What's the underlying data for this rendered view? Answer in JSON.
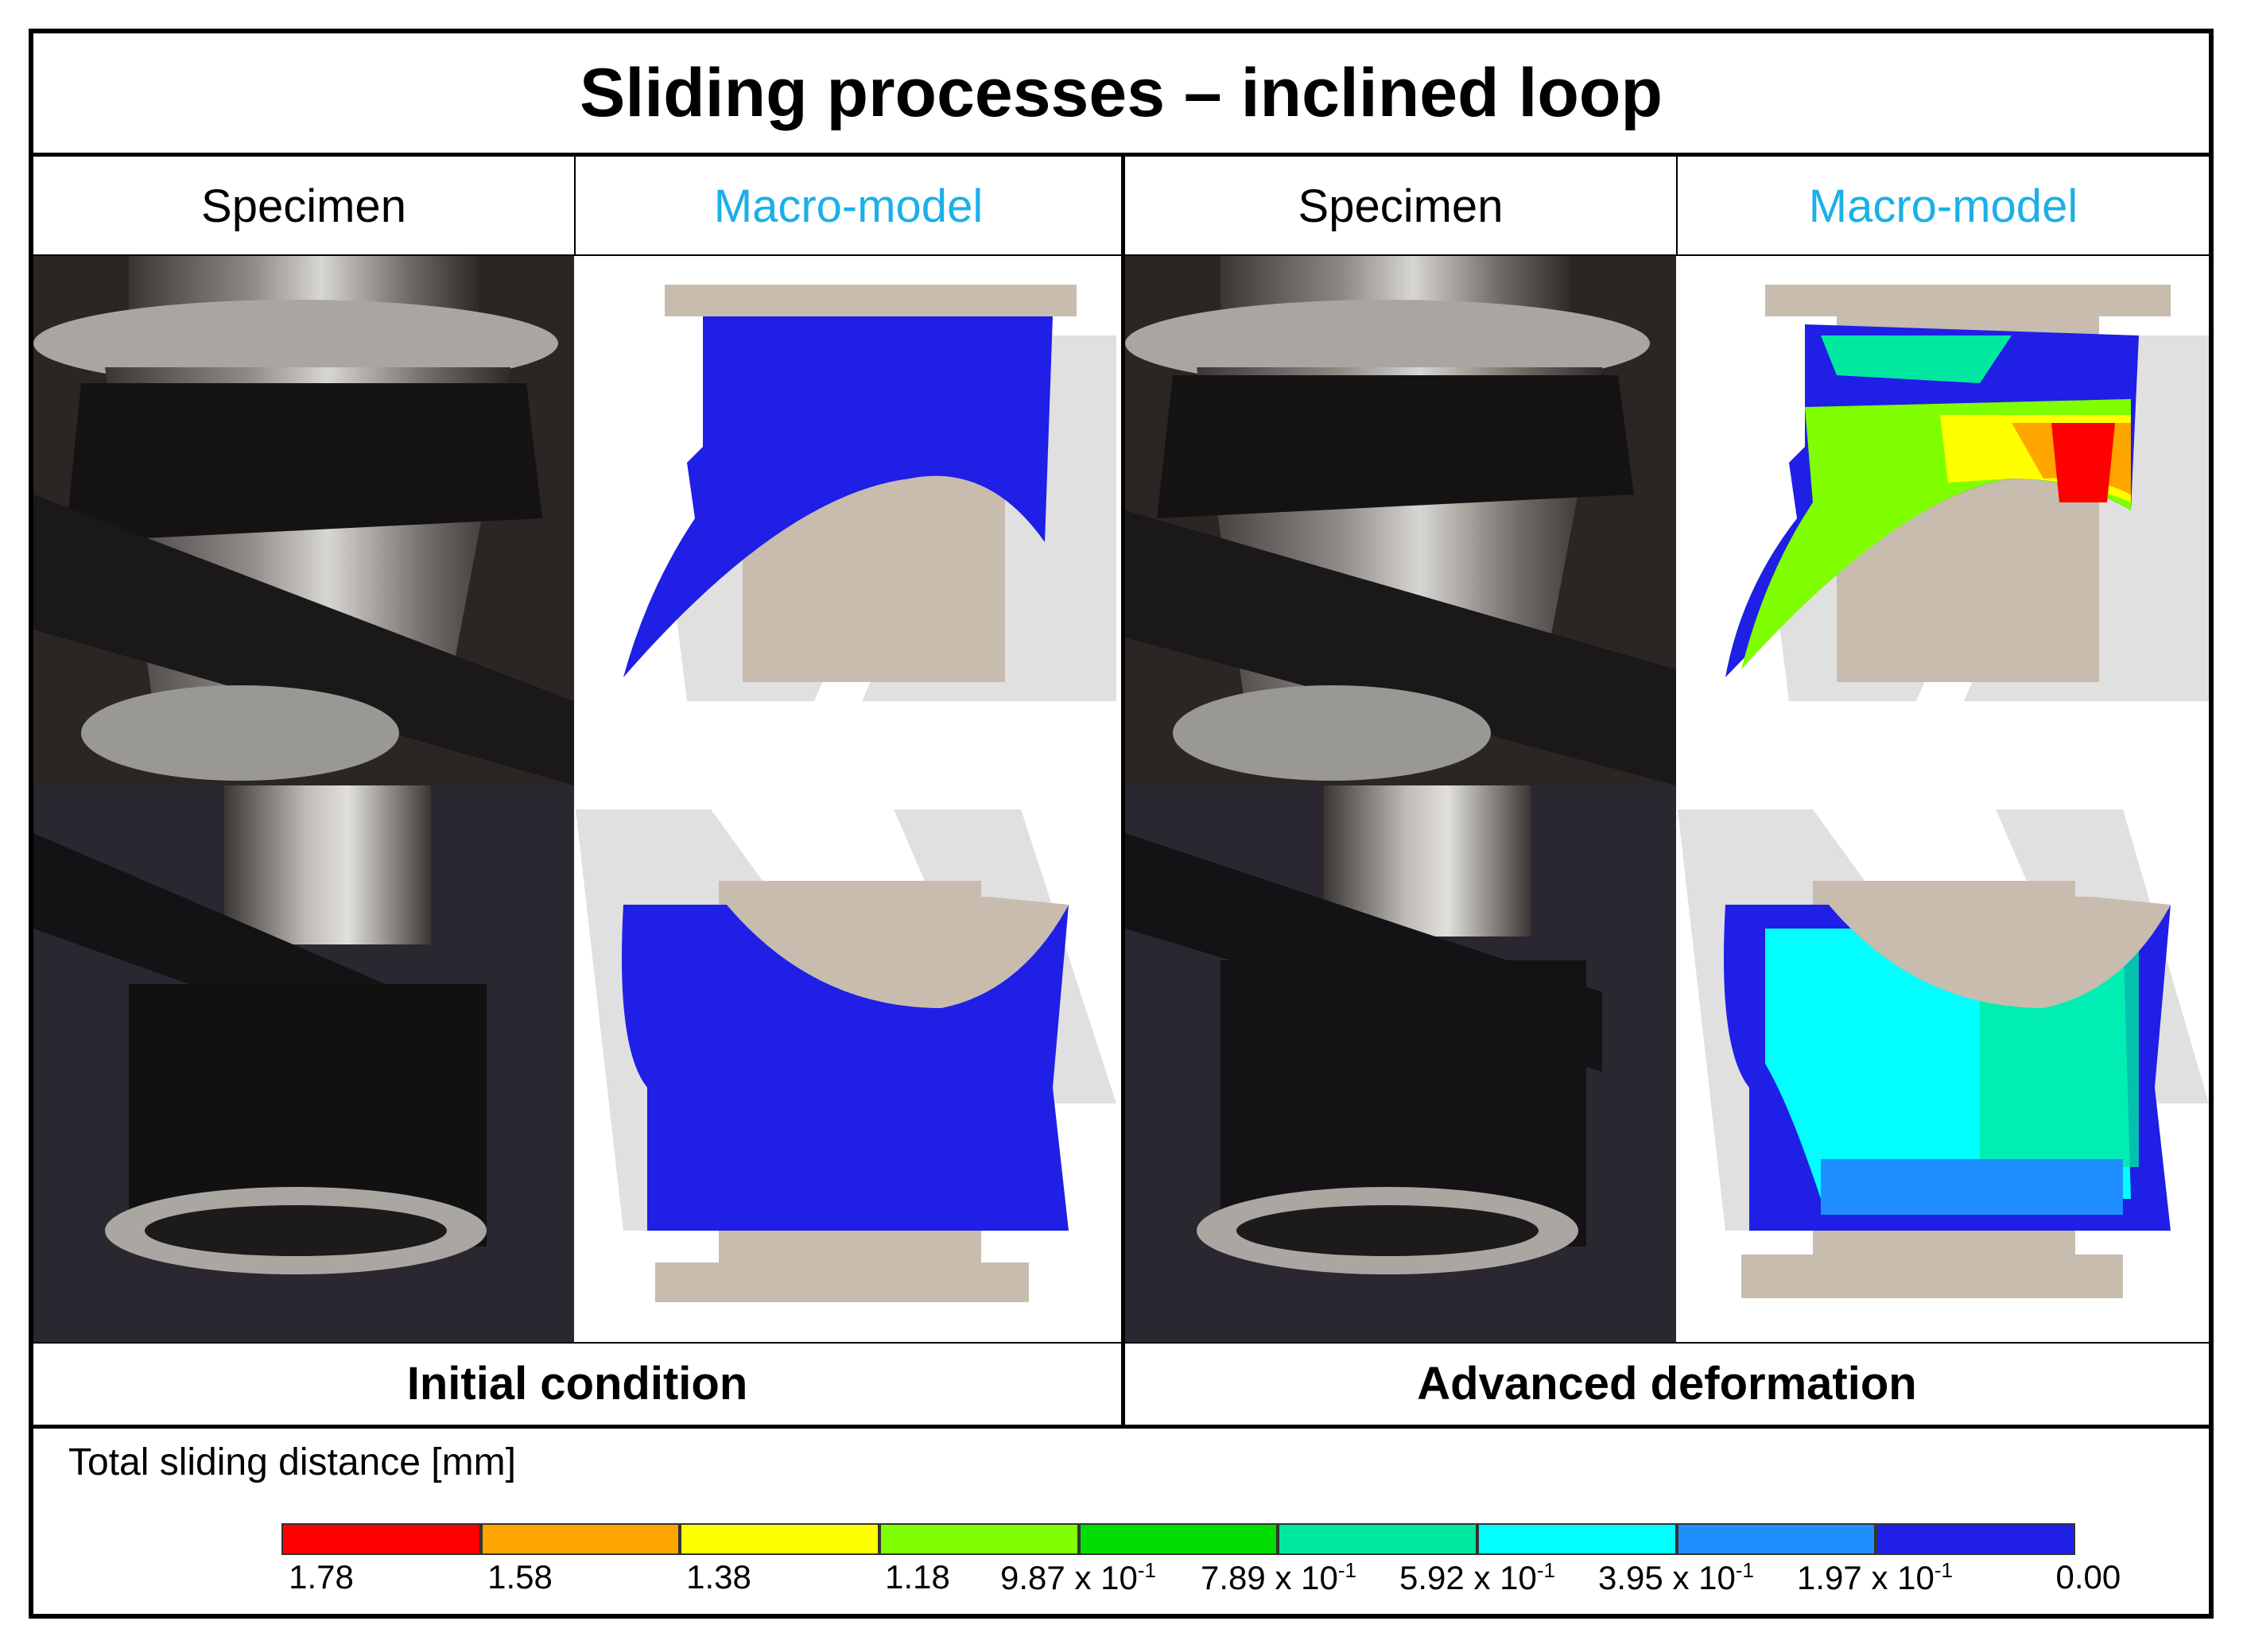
{
  "title": "Sliding processes – inclined loop",
  "left_group": {
    "specimen_label": "Specimen",
    "model_label": "Macro-model",
    "caption": "Initial condition"
  },
  "right_group": {
    "specimen_label": "Specimen",
    "model_label": "Macro-model",
    "caption": "Advanced deformation"
  },
  "colors": {
    "model_label": "#1ab0e8",
    "tool_beige": "#c7bcae",
    "tool_shadow": "#bdbdbd",
    "initial_contour": "#1f1fe6"
  },
  "legend": {
    "title": "Total sliding distance [mm]",
    "colors": [
      "#ff0000",
      "#ffa500",
      "#ffff00",
      "#7fff00",
      "#00dd00",
      "#00e8a0",
      "#00ffff",
      "#1f8fff",
      "#1f1fe6"
    ],
    "labels": [
      {
        "mantissa": "1.78",
        "exp": ""
      },
      {
        "mantissa": "1.58",
        "exp": ""
      },
      {
        "mantissa": "1.38",
        "exp": ""
      },
      {
        "mantissa": "1.18",
        "exp": ""
      },
      {
        "mantissa": "9.87 x 10",
        "exp": "-1"
      },
      {
        "mantissa": "7.89 x 10",
        "exp": "-1"
      },
      {
        "mantissa": "5.92 x 10",
        "exp": "-1"
      },
      {
        "mantissa": "3.95 x 10",
        "exp": "-1"
      },
      {
        "mantissa": "1.97 x 10",
        "exp": "-1"
      },
      {
        "mantissa": "0.00",
        "exp": ""
      }
    ]
  }
}
